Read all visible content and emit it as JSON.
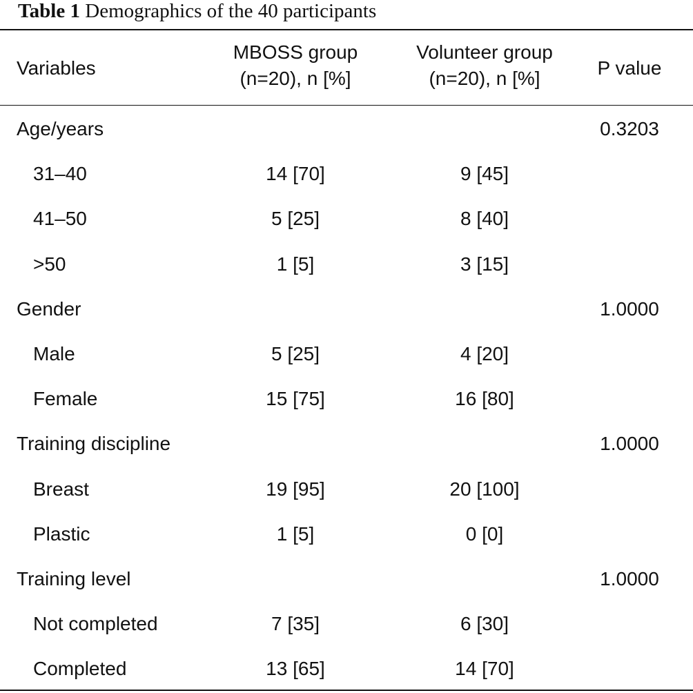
{
  "caption": {
    "label": "Table 1",
    "text": "Demographics of the 40 participants"
  },
  "table": {
    "headers": {
      "variables": "Variables",
      "mboss_line1": "MBOSS group",
      "mboss_line2": "(n=20), n [%]",
      "volunteer_line1": "Volunteer group",
      "volunteer_line2": "(n=20), n [%]",
      "p_value": "P value"
    },
    "rows": [
      {
        "label": "Age/years",
        "mboss": "",
        "volunteer": "",
        "p": "0.3203",
        "indent": false
      },
      {
        "label": "31–40",
        "mboss": "14 [70]",
        "volunteer": "9 [45]",
        "p": "",
        "indent": true
      },
      {
        "label": "41–50",
        "mboss": "5 [25]",
        "volunteer": "8 [40]",
        "p": "",
        "indent": true
      },
      {
        "label": ">50",
        "mboss": "1 [5]",
        "volunteer": "3 [15]",
        "p": "",
        "indent": true
      },
      {
        "label": "Gender",
        "mboss": "",
        "volunteer": "",
        "p": "1.0000",
        "indent": false
      },
      {
        "label": "Male",
        "mboss": "5 [25]",
        "volunteer": "4 [20]",
        "p": "",
        "indent": true
      },
      {
        "label": "Female",
        "mboss": "15 [75]",
        "volunteer": "16 [80]",
        "p": "",
        "indent": true
      },
      {
        "label": "Training discipline",
        "mboss": "",
        "volunteer": "",
        "p": "1.0000",
        "indent": false
      },
      {
        "label": "Breast",
        "mboss": "19 [95]",
        "volunteer": "20 [100]",
        "p": "",
        "indent": true
      },
      {
        "label": "Plastic",
        "mboss": "1 [5]",
        "volunteer": "0 [0]",
        "p": "",
        "indent": true
      },
      {
        "label": "Training level",
        "mboss": "",
        "volunteer": "",
        "p": "1.0000",
        "indent": false
      },
      {
        "label": "Not completed",
        "mboss": "7 [35]",
        "volunteer": "6 [30]",
        "p": "",
        "indent": true
      },
      {
        "label": "Completed",
        "mboss": "13 [65]",
        "volunteer": "14 [70]",
        "p": "",
        "indent": true
      }
    ]
  }
}
